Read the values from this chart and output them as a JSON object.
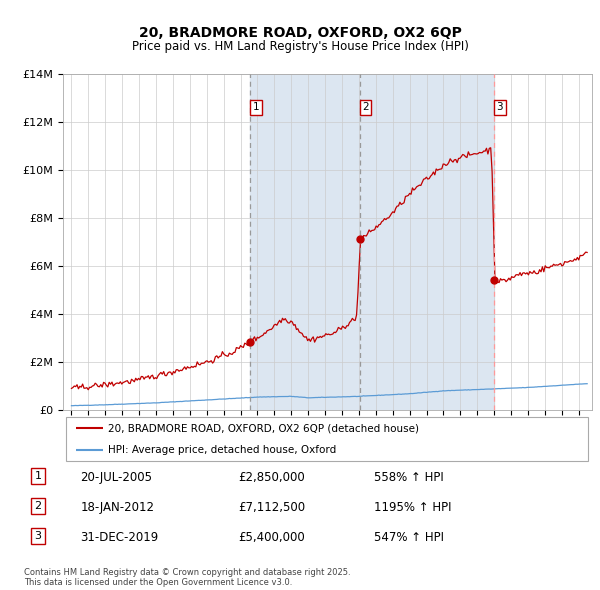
{
  "title1": "20, BRADMORE ROAD, OXFORD, OX2 6QP",
  "title2": "Price paid vs. HM Land Registry's House Price Index (HPI)",
  "legend_line1": "20, BRADMORE ROAD, OXFORD, OX2 6QP (detached house)",
  "legend_line2": "HPI: Average price, detached house, Oxford",
  "footnote": "Contains HM Land Registry data © Crown copyright and database right 2025.\nThis data is licensed under the Open Government Licence v3.0.",
  "transactions": [
    {
      "num": 1,
      "date": "20-JUL-2005",
      "price": 2850000,
      "pct": "558% ↑ HPI",
      "x": 2005.55
    },
    {
      "num": 2,
      "date": "18-JAN-2012",
      "price": 7112500,
      "pct": "1195% ↑ HPI",
      "x": 2012.05
    },
    {
      "num": 3,
      "date": "31-DEC-2019",
      "price": 5400000,
      "pct": "547% ↑ HPI",
      "x": 2019.99
    }
  ],
  "hpi_line_color": "#5b9bd5",
  "price_line_color": "#c00000",
  "bg_shaded_color": "#dce6f1",
  "dashed_line_color_1": "#999999",
  "dashed_line_color_3": "#ff9999",
  "ylim": [
    0,
    14000000
  ],
  "xlim_start": 1994.5,
  "xlim_end": 2025.8,
  "yticks": [
    0,
    2000000,
    4000000,
    6000000,
    8000000,
    10000000,
    12000000,
    14000000
  ],
  "ytick_labels": [
    "£0",
    "£2M",
    "£4M",
    "£6M",
    "£8M",
    "£10M",
    "£12M",
    "£14M"
  ]
}
